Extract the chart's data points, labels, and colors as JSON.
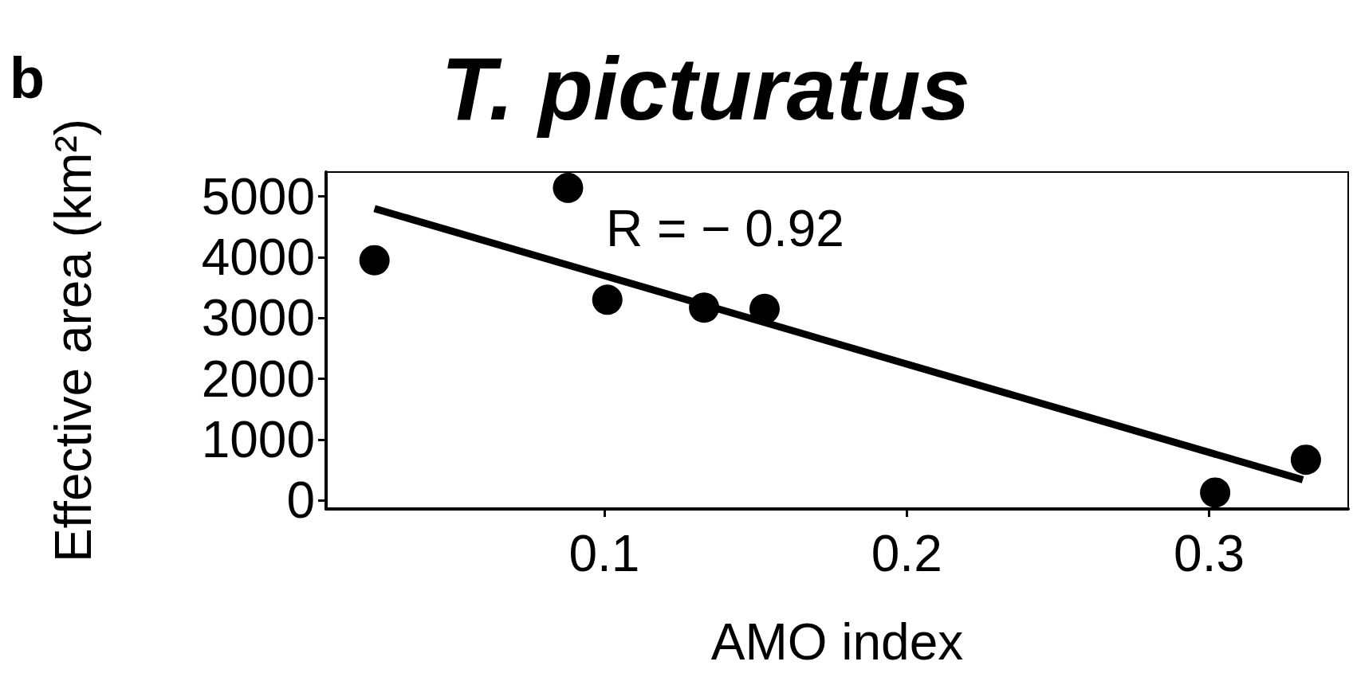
{
  "chart_data": {
    "type": "scatter",
    "title": "T. picturatus",
    "xlabel": "AMO index",
    "ylabel": "Effective area (km²)",
    "annotations": [
      "b",
      "R = − 0.92"
    ],
    "xlim": [
      0.008,
      0.346
    ],
    "xticks": [
      0.1,
      0.2,
      0.3
    ],
    "ylim": [
      -140,
      5400
    ],
    "yticks": [
      0,
      1000,
      2000,
      3000,
      4000,
      5000
    ],
    "series": [
      {
        "marker": "circle",
        "color": "#000000",
        "x": [
          0.024,
          0.088,
          0.101,
          0.133,
          0.153,
          0.302,
          0.332
        ],
        "values": [
          3950,
          5140,
          3300,
          3170,
          3150,
          130,
          670
        ]
      },
      {
        "type": "line",
        "marker": "none",
        "line_style": "solid",
        "color": "#000000",
        "x": [
          0.024,
          0.331
        ],
        "values": [
          4800,
          340
        ]
      }
    ]
  }
}
